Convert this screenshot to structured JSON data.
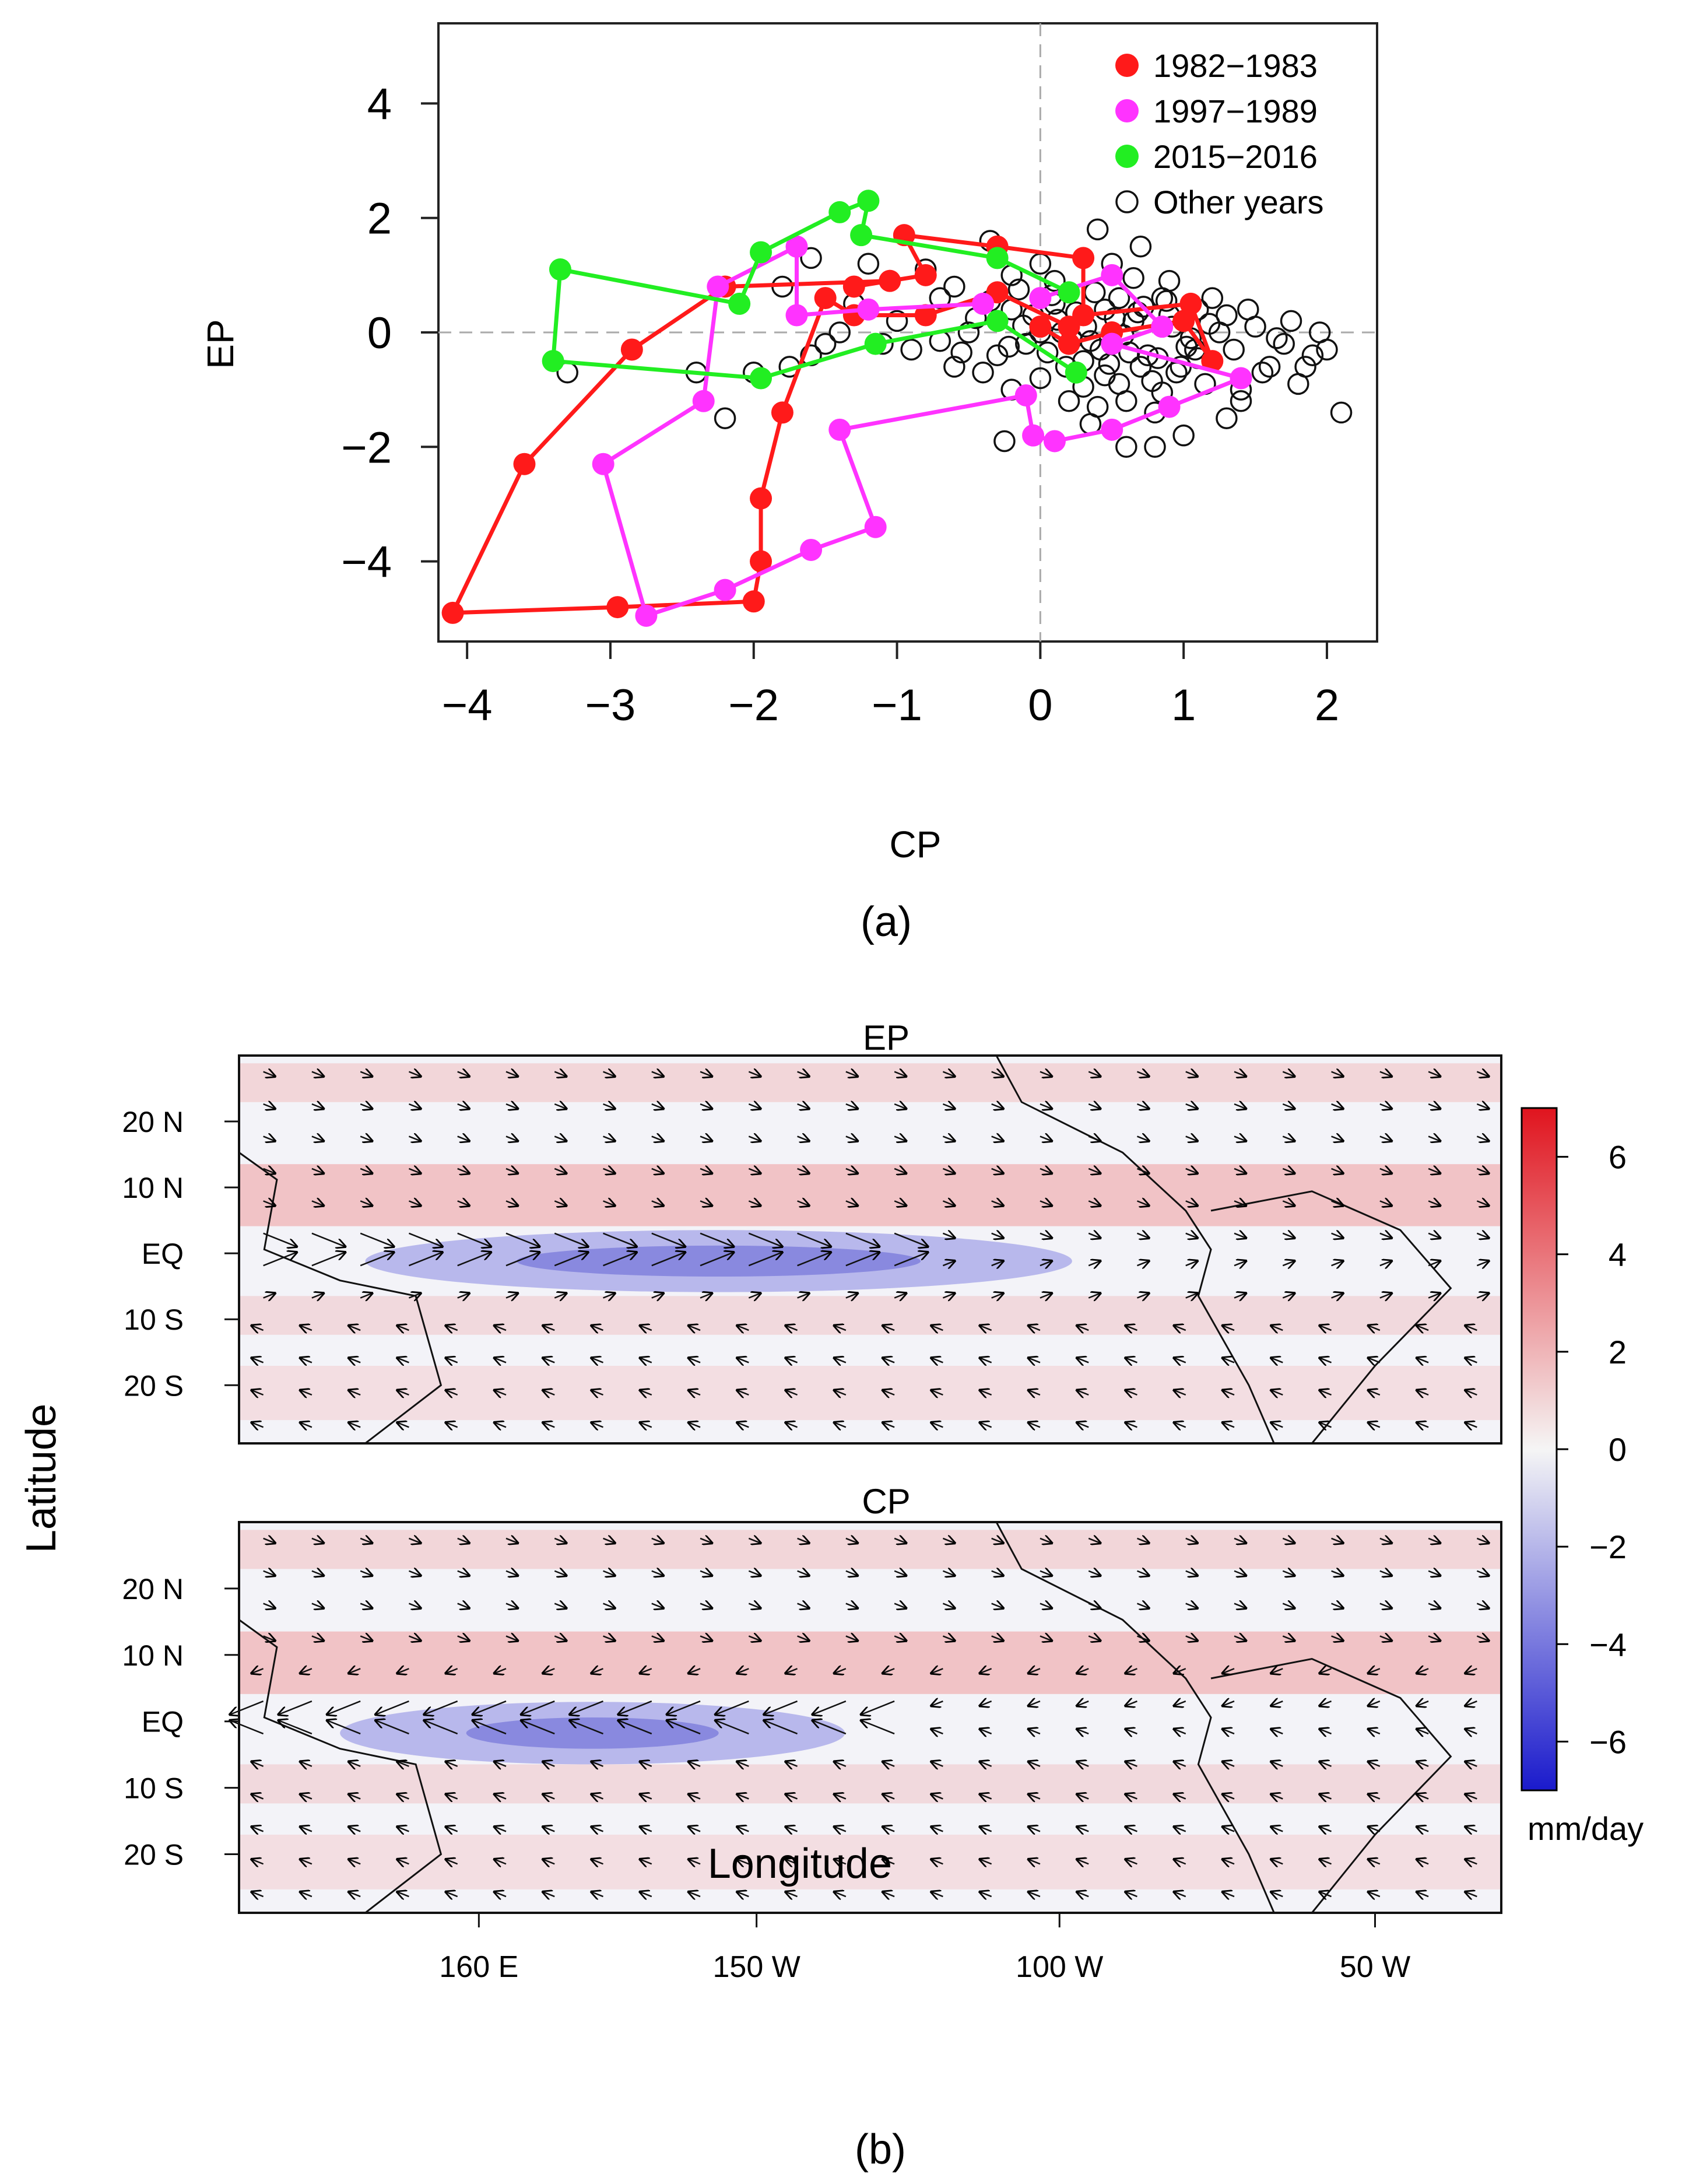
{
  "panel_a": {
    "caption": "(a)",
    "chart_data": {
      "type": "scatter",
      "xlabel": "CP",
      "ylabel": "EP",
      "xlim": [
        -4.2,
        2.35
      ],
      "ylim": [
        -5.4,
        5.4
      ],
      "xticks": [
        -4,
        -3,
        -2,
        -1,
        0,
        1,
        2
      ],
      "yticks": [
        -4,
        -2,
        0,
        2,
        4
      ],
      "xtick_labels": [
        "−4",
        "−3",
        "−2",
        "−1",
        "0",
        "1",
        "2"
      ],
      "ytick_labels": [
        "−4",
        "−2",
        "0",
        "2",
        "4"
      ],
      "reference_lines": {
        "x": 0,
        "y": 0,
        "style": "dashed gray"
      },
      "legend_position": "top-right",
      "series": [
        {
          "name": "1982−1983",
          "color": "#ff1a1a",
          "style": "filled-line",
          "points": [
            [
              0.0,
              0.1
            ],
            [
              0.2,
              -0.2
            ],
            [
              0.5,
              0.0
            ],
            [
              1.0,
              0.2
            ],
            [
              1.2,
              -0.5
            ],
            [
              1.05,
              0.5
            ],
            [
              0.3,
              0.3
            ],
            [
              0.3,
              1.3
            ],
            [
              -0.3,
              1.5
            ],
            [
              -0.95,
              1.7
            ],
            [
              -0.8,
              1.0
            ],
            [
              -1.3,
              0.8
            ],
            [
              -1.05,
              0.9
            ],
            [
              -2.2,
              0.8
            ],
            [
              -2.85,
              -0.3
            ],
            [
              -3.6,
              -2.3
            ],
            [
              -4.1,
              -4.9
            ],
            [
              -2.95,
              -4.8
            ],
            [
              -2.0,
              -4.7
            ],
            [
              -1.95,
              -4.0
            ],
            [
              -1.95,
              -2.9
            ],
            [
              -1.8,
              -1.4
            ],
            [
              -1.5,
              0.6
            ],
            [
              -1.3,
              0.3
            ],
            [
              -0.8,
              0.3
            ],
            [
              -0.3,
              0.7
            ],
            [
              0.2,
              0.1
            ]
          ]
        },
        {
          "name": "1997−1989",
          "color": "#ff33ff",
          "style": "filled-line",
          "points": [
            [
              0.0,
              0.6
            ],
            [
              0.5,
              1.0
            ],
            [
              0.85,
              0.1
            ],
            [
              0.5,
              -0.2
            ],
            [
              1.4,
              -0.8
            ],
            [
              0.9,
              -1.3
            ],
            [
              0.5,
              -1.7
            ],
            [
              0.1,
              -1.9
            ],
            [
              -0.05,
              -1.8
            ],
            [
              -0.1,
              -1.1
            ],
            [
              -1.4,
              -1.7
            ],
            [
              -1.15,
              -3.4
            ],
            [
              -1.6,
              -3.8
            ],
            [
              -2.2,
              -4.5
            ],
            [
              -2.75,
              -4.95
            ],
            [
              -3.05,
              -2.3
            ],
            [
              -2.35,
              -1.2
            ],
            [
              -2.25,
              0.8
            ],
            [
              -1.7,
              1.5
            ],
            [
              -1.7,
              0.3
            ],
            [
              -1.2,
              0.4
            ],
            [
              -0.4,
              0.5
            ]
          ]
        },
        {
          "name": "2015−2016",
          "color": "#22ee22",
          "style": "filled-line",
          "points": [
            [
              0.2,
              0.7
            ],
            [
              -0.3,
              1.3
            ],
            [
              -1.25,
              1.7
            ],
            [
              -1.2,
              2.3
            ],
            [
              -1.4,
              2.1
            ],
            [
              -1.95,
              1.4
            ],
            [
              -2.1,
              0.5
            ],
            [
              -3.35,
              1.1
            ],
            [
              -3.4,
              -0.5
            ],
            [
              -1.95,
              -0.8
            ],
            [
              -1.15,
              -0.2
            ],
            [
              -0.3,
              0.2
            ],
            [
              0.25,
              -0.7
            ]
          ]
        },
        {
          "name": "Other years",
          "color": "#000000",
          "style": "open-circle",
          "points": [
            [
              -0.35,
              1.6
            ],
            [
              0.0,
              1.2
            ],
            [
              0.4,
              1.8
            ],
            [
              0.7,
              1.5
            ],
            [
              0.9,
              0.9
            ],
            [
              1.1,
              0.4
            ],
            [
              1.3,
              0.3
            ],
            [
              1.5,
              0.1
            ],
            [
              1.7,
              -0.2
            ],
            [
              1.9,
              -0.4
            ],
            [
              2.0,
              -0.3
            ],
            [
              2.1,
              -1.4
            ],
            [
              1.8,
              -0.9
            ],
            [
              1.6,
              -0.6
            ],
            [
              1.4,
              -1.0
            ],
            [
              1.3,
              -1.5
            ],
            [
              1.0,
              -1.8
            ],
            [
              0.8,
              -2.0
            ],
            [
              0.6,
              -2.0
            ],
            [
              0.35,
              -1.6
            ],
            [
              -0.25,
              -1.9
            ],
            [
              -0.6,
              -0.6
            ],
            [
              -0.9,
              -0.3
            ],
            [
              -1.1,
              -0.2
            ],
            [
              -1.4,
              0.0
            ],
            [
              -1.6,
              -0.4
            ],
            [
              -1.75,
              -0.6
            ],
            [
              -2.0,
              -0.7
            ],
            [
              -2.2,
              -1.5
            ],
            [
              -2.4,
              -0.7
            ],
            [
              -3.3,
              -0.7
            ],
            [
              -1.5,
              -0.2
            ],
            [
              -1.3,
              0.5
            ],
            [
              -1.0,
              0.2
            ],
            [
              -0.7,
              0.6
            ],
            [
              -0.5,
              0.0
            ],
            [
              -0.2,
              0.4
            ],
            [
              -0.1,
              -0.2
            ],
            [
              0.1,
              0.5
            ],
            [
              0.3,
              -0.5
            ],
            [
              0.45,
              0.4
            ],
            [
              0.55,
              -0.9
            ],
            [
              0.65,
              0.2
            ],
            [
              0.75,
              -0.4
            ],
            [
              0.85,
              0.6
            ],
            [
              0.95,
              -0.7
            ],
            [
              1.05,
              -0.1
            ],
            [
              1.15,
              -0.9
            ],
            [
              1.25,
              0.0
            ],
            [
              1.35,
              -0.3
            ],
            [
              1.45,
              0.4
            ],
            [
              1.55,
              -0.7
            ],
            [
              1.65,
              -0.1
            ],
            [
              1.75,
              0.2
            ],
            [
              1.85,
              -0.6
            ],
            [
              1.95,
              0.0
            ],
            [
              0.2,
              -1.2
            ],
            [
              0.4,
              -1.3
            ],
            [
              0.6,
              -1.2
            ],
            [
              0.8,
              -1.4
            ],
            [
              -0.2,
              -1.0
            ],
            [
              -0.4,
              -0.7
            ],
            [
              0.0,
              -0.8
            ],
            [
              -0.6,
              0.8
            ],
            [
              -0.8,
              1.1
            ],
            [
              -0.2,
              1.0
            ],
            [
              0.1,
              0.9
            ],
            [
              0.5,
              1.2
            ],
            [
              -1.2,
              1.2
            ],
            [
              -1.6,
              1.3
            ],
            [
              -1.8,
              0.8
            ],
            [
              -0.05,
              0.3
            ],
            [
              0.15,
              0.0
            ],
            [
              0.25,
              0.35
            ],
            [
              0.35,
              -0.15
            ],
            [
              0.55,
              0.6
            ],
            [
              0.7,
              -0.6
            ],
            [
              0.9,
              0.3
            ],
            [
              1.1,
              -0.45
            ],
            [
              -0.3,
              -0.4
            ],
            [
              -0.15,
              0.75
            ],
            [
              0.05,
              -0.35
            ],
            [
              0.45,
              -0.75
            ],
            [
              0.65,
              0.95
            ],
            [
              0.85,
              -1.05
            ],
            [
              1.2,
              0.6
            ],
            [
              1.4,
              -1.2
            ],
            [
              0.3,
              -0.95
            ],
            [
              -0.45,
              0.25
            ],
            [
              -0.7,
              -0.15
            ],
            [
              0.0,
              0.0
            ],
            [
              0.12,
              0.22
            ],
            [
              0.22,
              -0.12
            ],
            [
              0.32,
              0.1
            ],
            [
              0.42,
              -0.3
            ],
            [
              0.52,
              0.25
            ],
            [
              0.62,
              -0.35
            ],
            [
              0.72,
              0.45
            ],
            [
              0.82,
              -0.45
            ],
            [
              0.92,
              0.1
            ],
            [
              1.02,
              -0.25
            ],
            [
              -0.12,
              0.12
            ],
            [
              -0.22,
              -0.25
            ],
            [
              0.08,
              0.65
            ],
            [
              0.18,
              -0.6
            ],
            [
              0.38,
              0.7
            ],
            [
              0.48,
              -0.55
            ],
            [
              0.58,
              -0.05
            ],
            [
              0.68,
              0.35
            ],
            [
              0.78,
              -0.85
            ],
            [
              0.88,
              0.55
            ],
            [
              0.98,
              -0.6
            ],
            [
              1.08,
              -0.3
            ],
            [
              1.18,
              0.15
            ],
            [
              -0.35,
              0.55
            ],
            [
              -0.55,
              -0.35
            ]
          ]
        }
      ]
    }
  },
  "panel_b": {
    "caption": "(b)",
    "xlabel": "Longitude",
    "ylabel": "Latitude",
    "lat_labels": [
      "20 N",
      "10 N",
      "EQ",
      "10 S",
      "20 S"
    ],
    "lon_labels": [
      "160 E",
      "150 W",
      "100 W",
      "50 W"
    ],
    "maps": [
      {
        "title": "EP"
      },
      {
        "title": "CP"
      }
    ],
    "colorbar": {
      "unit": "mm/day",
      "range": [
        -7,
        7
      ],
      "ticks": [
        6,
        4,
        2,
        0,
        -2,
        -4,
        -6
      ],
      "tick_labels": [
        "6",
        "4",
        "2",
        "0",
        "−2",
        "−4",
        "−6"
      ],
      "colors": {
        "low": "#1a1acc",
        "mid": "#f5f5f5",
        "high": "#e0141e"
      }
    }
  }
}
